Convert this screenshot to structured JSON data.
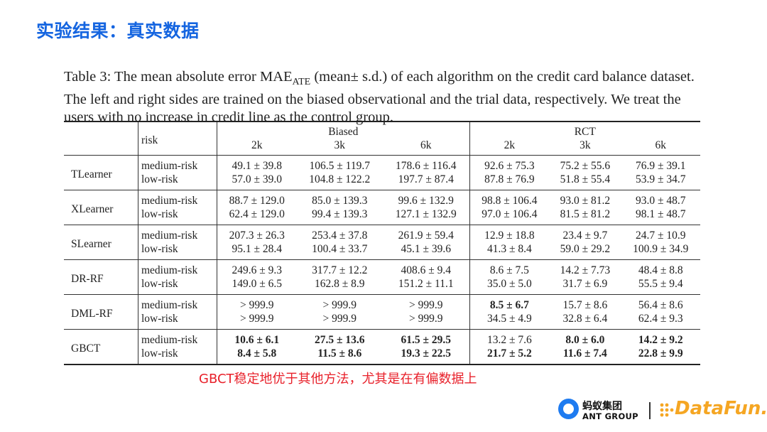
{
  "slide": {
    "title": "实验结果：真实数据",
    "conclusion": "GBCT稳定地优于其他方法，尤其是在有偏数据上"
  },
  "caption": {
    "prefix": "Table 3:  The mean absolute error ",
    "metric": "MAE",
    "metric_sub": "ATE",
    "suffix": " (mean± s.d.)  of each algorithm on the credit card balance dataset. The left and right sides are trained on the biased observational and the trial data, respectively. We treat the users with no increase in credit line as the control group."
  },
  "table": {
    "risk_header": "risk",
    "group_headers": [
      "Biased",
      "RCT"
    ],
    "size_headers": [
      "2k",
      "3k",
      "6k",
      "2k",
      "3k",
      "6k"
    ],
    "rows": [
      {
        "algorithm": "TLearner",
        "medium": {
          "label": "medium-risk",
          "values": [
            "49.1 ± 39.8",
            "106.5 ± 119.7",
            "178.6 ± 116.4",
            "92.6 ± 75.3",
            "75.2 ± 55.6",
            "76.9 ± 39.1"
          ]
        },
        "low": {
          "label": "low-risk",
          "values": [
            "57.0 ± 39.0",
            "104.8 ± 122.2",
            "197.7 ± 87.4",
            "87.8 ± 76.9",
            "51.8 ± 55.4",
            "53.9 ± 34.7"
          ]
        }
      },
      {
        "algorithm": "XLearner",
        "medium": {
          "label": "medium-risk",
          "values": [
            "88.7 ± 129.0",
            "85.0 ± 139.3",
            "99.6 ± 132.9",
            "98.8 ± 106.4",
            "93.0 ± 81.2",
            "93.0 ± 48.7"
          ]
        },
        "low": {
          "label": "low-risk",
          "values": [
            "62.4 ± 129.0",
            "99.4 ± 139.3",
            "127.1 ± 132.9",
            "97.0 ± 106.4",
            "81.5 ± 81.2",
            "98.1 ± 48.7"
          ]
        }
      },
      {
        "algorithm": "SLearner",
        "medium": {
          "label": "medium-risk",
          "values": [
            "207.3 ± 26.3",
            "253.4 ± 37.8",
            "261.9 ± 59.4",
            "12.9 ± 18.8",
            "23.4 ± 9.7",
            "24.7 ± 10.9"
          ]
        },
        "low": {
          "label": "low-risk",
          "values": [
            "95.1 ± 28.4",
            "100.4 ± 33.7",
            "45.1 ± 39.6",
            "41.3 ± 8.4",
            "59.0 ± 29.2",
            "100.9 ± 34.9"
          ]
        }
      },
      {
        "algorithm": "DR-RF",
        "medium": {
          "label": "medium-risk",
          "values": [
            "249.6 ± 9.3",
            "317.7 ± 12.2",
            "408.6 ± 9.4",
            "8.6 ± 7.5",
            "14.2 ± 7.73",
            "48.4 ± 8.8"
          ]
        },
        "low": {
          "label": "low-risk",
          "values": [
            "149.0 ± 6.5",
            "162.8 ± 8.9",
            "151.2 ± 11.1",
            "35.0 ± 5.0",
            "31.7 ± 6.9",
            "55.5 ± 9.4"
          ]
        }
      },
      {
        "algorithm": "DML-RF",
        "medium": {
          "label": "medium-risk",
          "values": [
            "> 999.9",
            "> 999.9",
            "> 999.9",
            "8.5 ± 6.7",
            "15.7 ± 8.6",
            "56.4 ± 8.6"
          ]
        },
        "low": {
          "label": "low-risk",
          "values": [
            "> 999.9",
            "> 999.9",
            "> 999.9",
            "34.5 ± 4.9",
            "32.8 ± 6.4",
            "62.4 ± 9.3"
          ]
        }
      },
      {
        "algorithm": "GBCT",
        "medium": {
          "label": "medium-risk",
          "values": [
            "10.6 ± 6.1",
            "27.5 ± 13.6",
            "61.5 ± 29.5",
            "13.2 ± 7.6",
            "8.0 ± 6.0",
            "14.2 ± 9.2"
          ]
        },
        "low": {
          "label": "low-risk",
          "values": [
            "8.4 ± 5.8",
            "11.5 ± 8.6",
            "19.3 ± 22.5",
            "21.7 ± 5.2",
            "11.6 ± 7.4",
            "22.8 ± 9.9"
          ]
        }
      }
    ]
  },
  "logos": {
    "ant_zh": "蚂蚁集团",
    "ant_en": "ANT GROUP",
    "datafun": "DataFun."
  }
}
